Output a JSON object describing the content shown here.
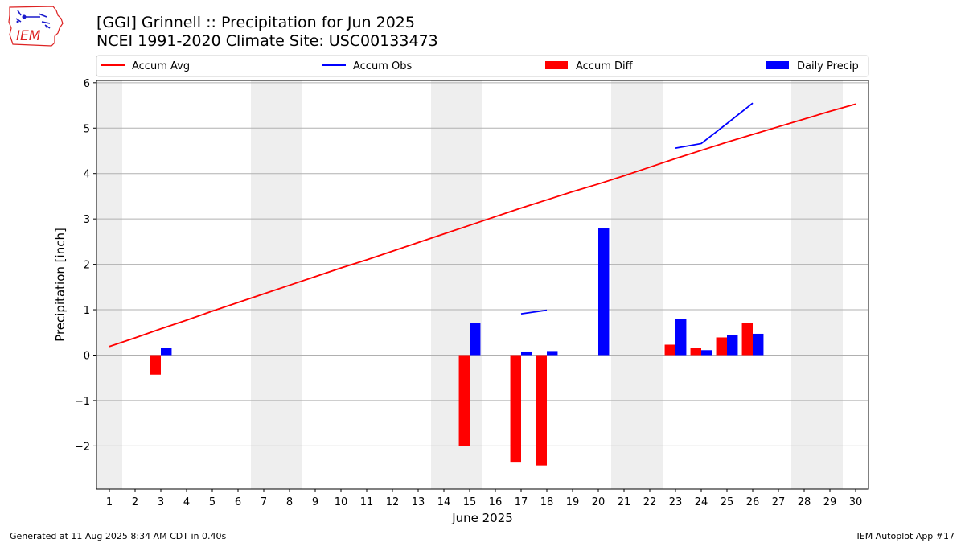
{
  "header": {
    "title_line1": "[GGI] Grinnell :: Precipitation for Jun 2025",
    "title_line2": "NCEI 1991-2020 Climate Site: USC00133473",
    "logo_text": "IEM"
  },
  "footer": {
    "generated": "Generated at 11 Aug 2025 8:34 AM CDT in 0.40s",
    "app": "IEM Autoplot App #17"
  },
  "colors": {
    "avg": "#ff0000",
    "obs": "#0000ff",
    "diff": "#ff0000",
    "daily": "#0000ff",
    "weekend": "#eeeeee",
    "grid": "#b0b0b0"
  },
  "chart_data": {
    "type": "bar",
    "title": "[GGI] Grinnell :: Precipitation for Jun 2025",
    "subtitle": "NCEI 1991-2020 Climate Site: USC00133473",
    "xlabel": "June 2025",
    "ylabel": "Precipitation [inch]",
    "ylim": [
      -2.95,
      6.05
    ],
    "yticks": [
      -2,
      -1,
      0,
      1,
      2,
      3,
      4,
      5,
      6
    ],
    "ytick_labels": [
      "−2",
      "−1",
      "0",
      "1",
      "2",
      "3",
      "4",
      "5",
      "6"
    ],
    "x": [
      1,
      2,
      3,
      4,
      5,
      6,
      7,
      8,
      9,
      10,
      11,
      12,
      13,
      14,
      15,
      16,
      17,
      18,
      19,
      20,
      21,
      22,
      23,
      24,
      25,
      26,
      27,
      28,
      29,
      30
    ],
    "xlim": [
      0.5,
      30.5
    ],
    "grid": "horizontal",
    "legend_position": "top",
    "weekend_bands": [
      [
        0.5,
        1.5
      ],
      [
        6.5,
        8.5
      ],
      [
        13.5,
        15.5
      ],
      [
        20.5,
        22.5
      ],
      [
        27.5,
        29.5
      ]
    ],
    "legend": [
      "Accum Avg",
      "Accum Obs",
      "Accum Diff",
      "Daily Precip"
    ],
    "series": [
      {
        "name": "Accum Avg",
        "kind": "line",
        "values": [
          0.19,
          0.38,
          0.58,
          0.77,
          0.97,
          1.16,
          1.35,
          1.54,
          1.73,
          1.92,
          2.1,
          2.29,
          2.48,
          2.67,
          2.86,
          3.05,
          3.24,
          3.42,
          3.6,
          3.77,
          3.95,
          4.14,
          4.33,
          4.51,
          4.69,
          4.86,
          5.03,
          5.2,
          5.37,
          5.53
        ]
      },
      {
        "name": "Accum Obs",
        "kind": "line",
        "values": [
          null,
          null,
          null,
          null,
          null,
          null,
          null,
          null,
          null,
          null,
          null,
          null,
          null,
          null,
          null,
          null,
          0.91,
          0.99,
          null,
          null,
          null,
          null,
          4.56,
          4.66,
          5.1,
          5.55,
          null,
          null,
          null,
          null
        ]
      },
      {
        "name": "Accum Diff",
        "kind": "bar",
        "side": "left",
        "values": [
          null,
          null,
          -0.43,
          null,
          null,
          null,
          null,
          null,
          null,
          null,
          null,
          null,
          null,
          null,
          -2.01,
          null,
          -2.35,
          -2.43,
          null,
          null,
          null,
          null,
          0.23,
          0.16,
          0.39,
          0.7,
          null,
          null,
          null,
          null
        ]
      },
      {
        "name": "Daily Precip",
        "kind": "bar",
        "side": "right",
        "values": [
          null,
          null,
          0.16,
          null,
          null,
          null,
          null,
          null,
          null,
          null,
          null,
          null,
          null,
          null,
          0.7,
          null,
          0.08,
          0.09,
          null,
          2.79,
          null,
          null,
          0.79,
          0.11,
          0.45,
          0.47,
          null,
          null,
          null,
          null
        ]
      }
    ]
  }
}
